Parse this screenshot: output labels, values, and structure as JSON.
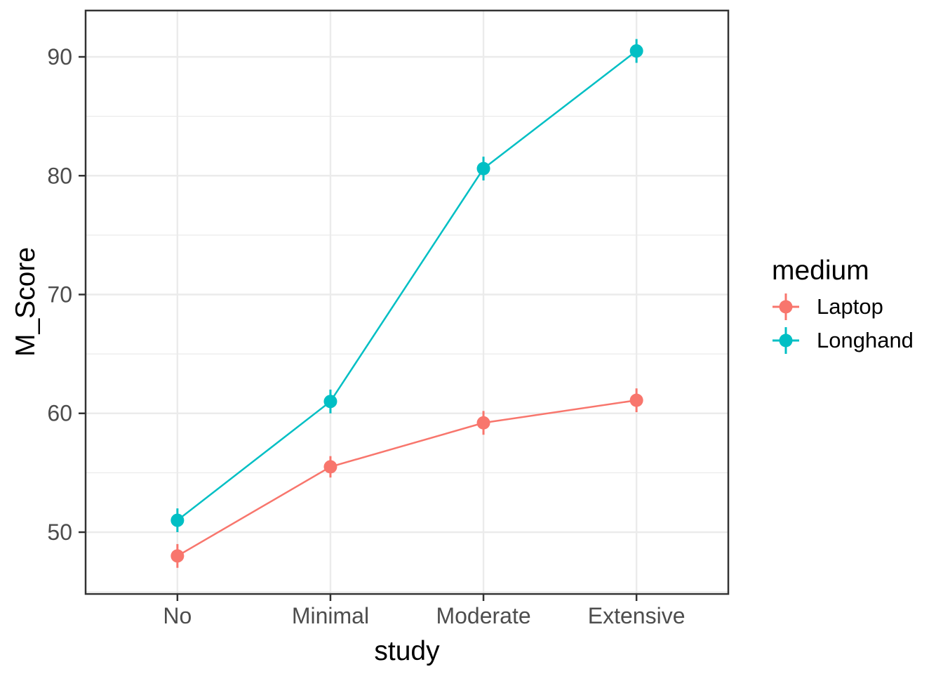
{
  "chart_data": {
    "type": "line",
    "xlabel": "study",
    "ylabel": "M_Score",
    "legend_title": "medium",
    "legend_position": "right",
    "categories": [
      "No",
      "Minimal",
      "Moderate",
      "Extensive"
    ],
    "series": [
      {
        "name": "Laptop",
        "color": "#F8766D",
        "values": [
          48.0,
          55.5,
          59.2,
          61.1
        ],
        "error": [
          1.0,
          0.9,
          1.0,
          1.0
        ]
      },
      {
        "name": "Longhand",
        "color": "#00BFC4",
        "values": [
          51.0,
          61.0,
          80.6,
          90.5
        ],
        "error": [
          1.0,
          1.0,
          1.0,
          1.0
        ]
      }
    ],
    "y_ticks": [
      50,
      60,
      70,
      80,
      90
    ],
    "y_minor_ticks": [
      45,
      55,
      65,
      75,
      85
    ],
    "ylim": [
      44.8,
      93.9
    ],
    "grid": true,
    "colors": {
      "background": "#FFFFFF",
      "grid": "#EBEBEB",
      "panel_border": "#333333",
      "tick_marks": "#333333",
      "axis_text": "#4D4D4D",
      "axis_title": "#000000"
    }
  }
}
